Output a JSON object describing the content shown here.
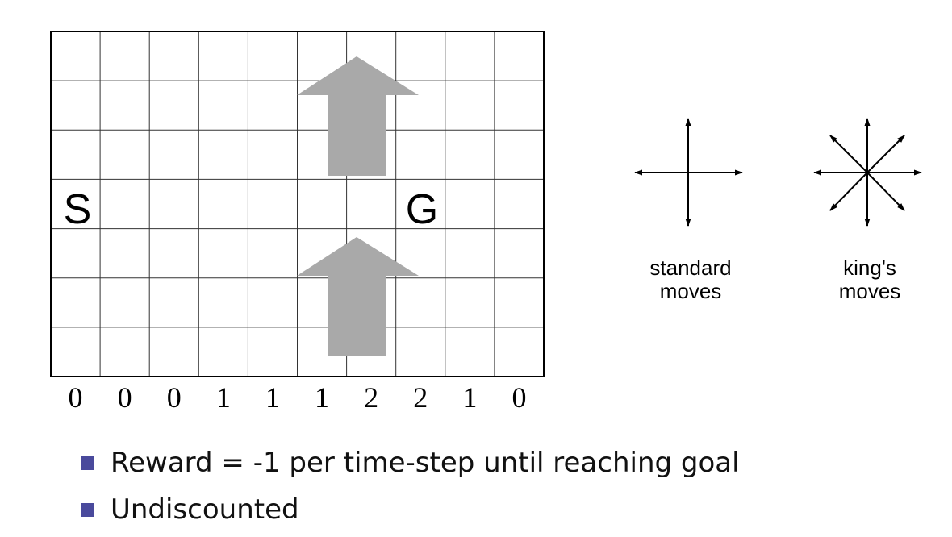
{
  "colors": {
    "arrow_fill": "#a9a9a9",
    "grid_line": "#333333",
    "bullet": "#4a4a9c"
  },
  "grid": {
    "columns": 10,
    "rows": 7,
    "start": {
      "label": "S",
      "col": 0,
      "row": 3
    },
    "goal": {
      "label": "G",
      "col": 7,
      "row": 3
    },
    "wind_strengths": [
      "0",
      "0",
      "0",
      "1",
      "1",
      "1",
      "2",
      "2",
      "1",
      "0"
    ]
  },
  "moves": {
    "standard_label_line1": "standard",
    "standard_label_line2": "moves",
    "kings_label_line1": "king's",
    "kings_label_line2": "moves"
  },
  "bullets": [
    {
      "text": "Reward = -1 per time-step until reaching goal"
    },
    {
      "text": "Undiscounted"
    }
  ]
}
